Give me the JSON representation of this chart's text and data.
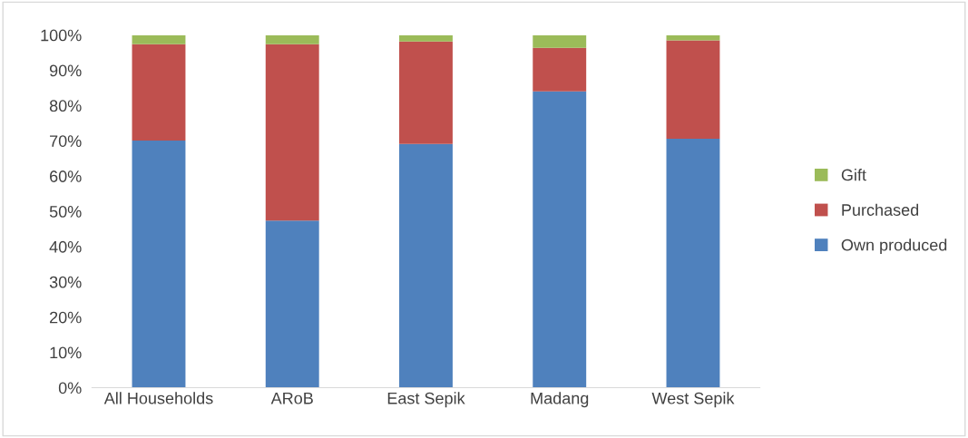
{
  "chart_data": {
    "type": "bar",
    "stacked": true,
    "categories": [
      "All Households",
      "ARoB",
      "East Sepik",
      "Madang",
      "West Sepik"
    ],
    "series": [
      {
        "name": "Own produced",
        "color": "#4f81bd",
        "values": [
          70.1,
          47.4,
          69.1,
          84.0,
          70.6
        ]
      },
      {
        "name": "Purchased",
        "color": "#c0504d",
        "values": [
          27.3,
          50.0,
          29.1,
          12.4,
          27.9
        ]
      },
      {
        "name": "Gift",
        "color": "#9bbb59",
        "values": [
          2.6,
          2.6,
          1.8,
          3.6,
          1.5
        ]
      }
    ],
    "ylim": [
      0,
      100
    ],
    "yticks": [
      {
        "value": 0,
        "label": "0%"
      },
      {
        "value": 10,
        "label": "10%"
      },
      {
        "value": 20,
        "label": "20%"
      },
      {
        "value": 30,
        "label": "30%"
      },
      {
        "value": 40,
        "label": "40%"
      },
      {
        "value": 50,
        "label": "50%"
      },
      {
        "value": 60,
        "label": "60%"
      },
      {
        "value": 70,
        "label": "70%"
      },
      {
        "value": 80,
        "label": "80%"
      },
      {
        "value": 90,
        "label": "90%"
      },
      {
        "value": 100,
        "label": "100%"
      }
    ],
    "grid": false,
    "legend": "right"
  }
}
